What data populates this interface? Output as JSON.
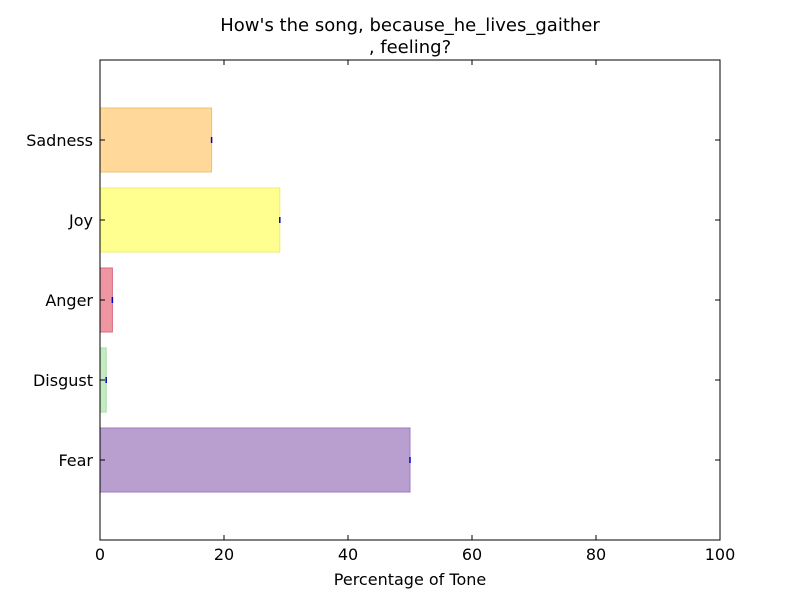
{
  "chart_data": {
    "type": "bar",
    "orientation": "horizontal",
    "title_lines": [
      "How's the song, because_he_lives_gaither",
      ", feeling?"
    ],
    "xlabel": "Percentage of Tone",
    "ylabel": "",
    "xlim": [
      0,
      100
    ],
    "xticks": [
      "0",
      "20",
      "40",
      "60",
      "80",
      "100"
    ],
    "grid": false,
    "categories": [
      "Fear",
      "Disgust",
      "Anger",
      "Joy",
      "Sadness"
    ],
    "values": [
      50,
      1,
      2,
      29,
      18
    ],
    "colors": [
      "#b89fd0",
      "#c4ecc2",
      "#ee97a3",
      "#ffff90",
      "#ffd89a"
    ],
    "edge_colors": [
      "#9d7bc0",
      "#a8dca6",
      "#d96a7c",
      "#eeee70",
      "#f0c070"
    ],
    "error_marker_color": "#0000cc"
  }
}
